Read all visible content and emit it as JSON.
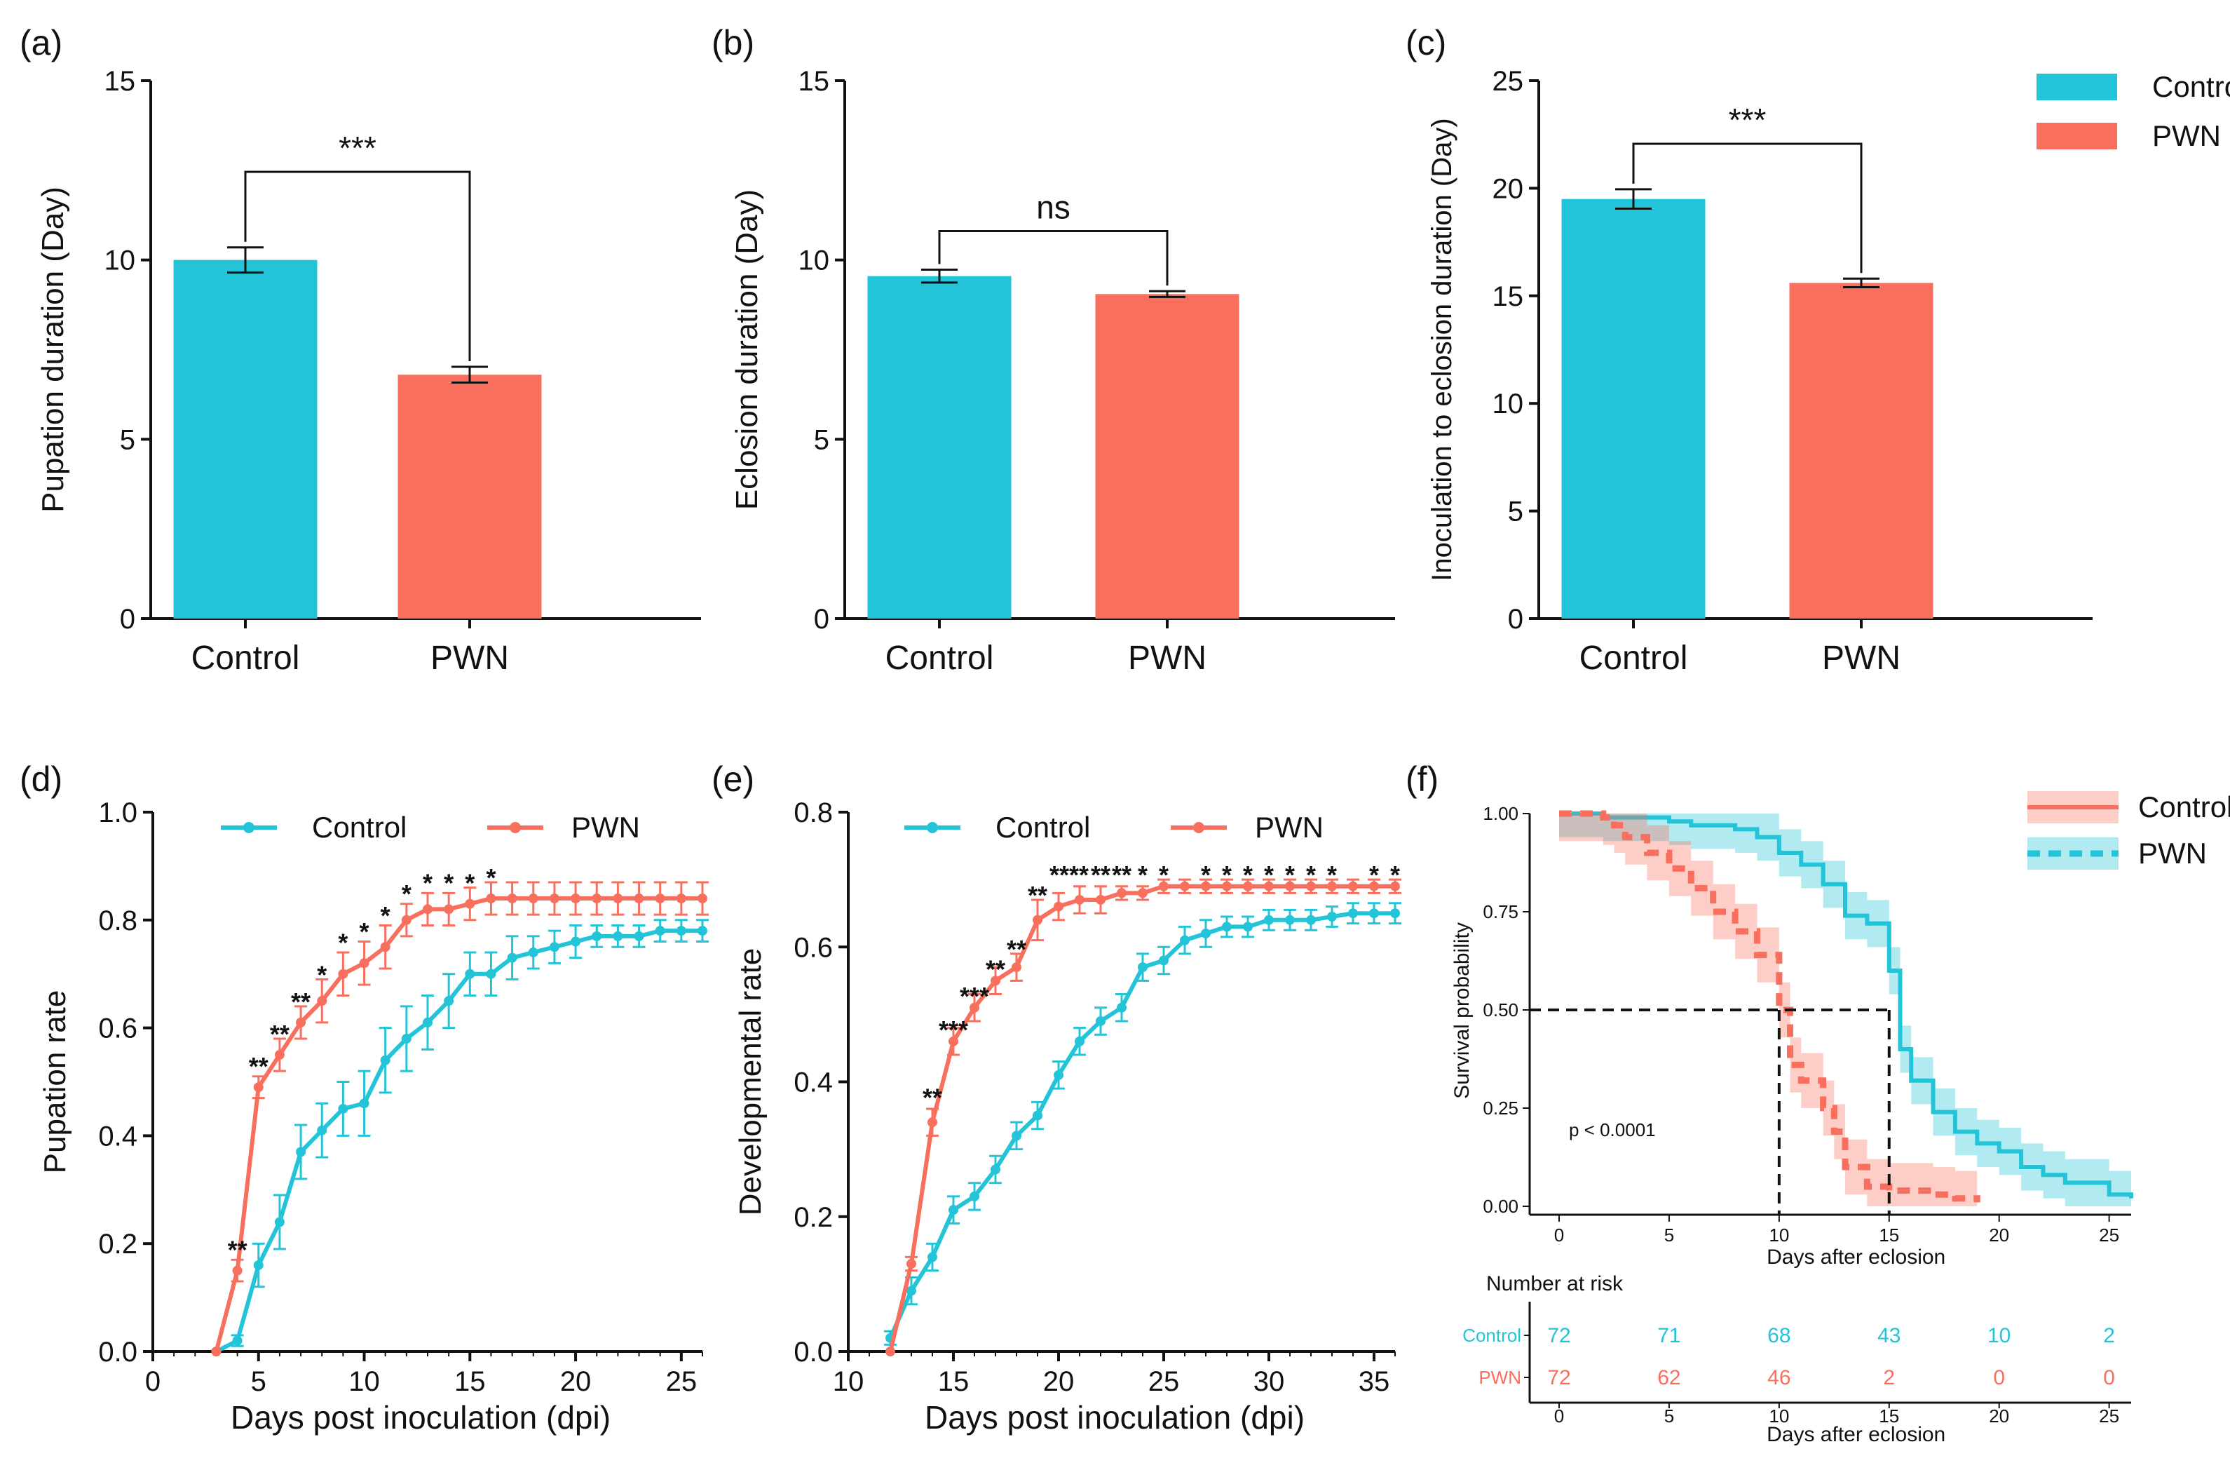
{
  "colors": {
    "control": "#23C4D8",
    "pwn": "#F96F5E",
    "axis": "#111111"
  },
  "legend": {
    "control": "Control",
    "pwn": "PWN"
  },
  "chart_data": [
    {
      "id": "a",
      "type": "bar",
      "panel_label": "(a)",
      "categories": [
        "Control",
        "PWN"
      ],
      "values": [
        10.0,
        6.8
      ],
      "errors": [
        0.35,
        0.22
      ],
      "ylabel": "Pupation duration  (Day)",
      "xlabel": "",
      "ylim": [
        0,
        15
      ],
      "yticks": [
        "0",
        "5",
        "10",
        "15"
      ],
      "significance": "***"
    },
    {
      "id": "b",
      "type": "bar",
      "panel_label": "(b)",
      "categories": [
        "Control",
        "PWN"
      ],
      "values": [
        9.55,
        9.05
      ],
      "errors": [
        0.18,
        0.08
      ],
      "ylabel": "Eclosion  duration  (Day)",
      "xlabel": "",
      "ylim": [
        0,
        15
      ],
      "yticks": [
        "0",
        "5",
        "10",
        "15"
      ],
      "significance": "ns"
    },
    {
      "id": "c",
      "type": "bar",
      "panel_label": "(c)",
      "categories": [
        "Control",
        "PWN"
      ],
      "values": [
        19.5,
        15.6
      ],
      "errors": [
        0.45,
        0.2
      ],
      "ylabel": "Inoculation to eclosion duration  (Day)",
      "xlabel": "",
      "ylim": [
        0,
        25
      ],
      "yticks": [
        "0",
        "5",
        "10",
        "15",
        "20",
        "25"
      ],
      "significance": "***"
    },
    {
      "id": "d",
      "type": "line",
      "panel_label": "(d)",
      "title": "",
      "xlabel": "Days post inoculation (dpi)",
      "ylabel": "Pupation rate",
      "xlim": [
        0,
        26
      ],
      "ylim": [
        0,
        1.0
      ],
      "xticks": [
        "0",
        "5",
        "10",
        "15",
        "20",
        "25"
      ],
      "yticks": [
        "0.0",
        "0.2",
        "0.4",
        "0.6",
        "0.8",
        "1.0"
      ],
      "series": [
        {
          "name": "Control",
          "x": [
            3,
            4,
            5,
            6,
            7,
            8,
            9,
            10,
            11,
            12,
            13,
            14,
            15,
            16,
            17,
            18,
            19,
            20,
            21,
            22,
            23,
            24,
            25,
            26
          ],
          "y": [
            0,
            0.02,
            0.16,
            0.24,
            0.37,
            0.41,
            0.45,
            0.46,
            0.54,
            0.58,
            0.61,
            0.65,
            0.7,
            0.7,
            0.73,
            0.74,
            0.75,
            0.76,
            0.77,
            0.77,
            0.77,
            0.78,
            0.78,
            0.78
          ],
          "err": [
            0,
            0.01,
            0.04,
            0.05,
            0.05,
            0.05,
            0.05,
            0.06,
            0.06,
            0.06,
            0.05,
            0.05,
            0.04,
            0.04,
            0.04,
            0.03,
            0.03,
            0.03,
            0.02,
            0.02,
            0.02,
            0.02,
            0.02,
            0.02
          ]
        },
        {
          "name": "PWN",
          "x": [
            3,
            4,
            5,
            6,
            7,
            8,
            9,
            10,
            11,
            12,
            13,
            14,
            15,
            16,
            17,
            18,
            19,
            20,
            21,
            22,
            23,
            24,
            25,
            26
          ],
          "y": [
            0,
            0.15,
            0.49,
            0.55,
            0.61,
            0.65,
            0.7,
            0.72,
            0.75,
            0.8,
            0.82,
            0.82,
            0.83,
            0.84,
            0.84,
            0.84,
            0.84,
            0.84,
            0.84,
            0.84,
            0.84,
            0.84,
            0.84,
            0.84
          ],
          "err": [
            0,
            0.02,
            0.02,
            0.03,
            0.03,
            0.04,
            0.04,
            0.04,
            0.04,
            0.03,
            0.03,
            0.03,
            0.03,
            0.03,
            0.03,
            0.03,
            0.03,
            0.03,
            0.03,
            0.03,
            0.03,
            0.03,
            0.03,
            0.03
          ]
        }
      ],
      "annotations": [
        {
          "x": 4,
          "y": 0.18,
          "text": "**"
        },
        {
          "x": 5,
          "y": 0.52,
          "text": "**"
        },
        {
          "x": 6,
          "y": 0.58,
          "text": "**"
        },
        {
          "x": 7,
          "y": 0.64,
          "text": "**"
        },
        {
          "x": 8,
          "y": 0.69,
          "text": "*"
        },
        {
          "x": 9,
          "y": 0.75,
          "text": "*"
        },
        {
          "x": 10,
          "y": 0.77,
          "text": "*"
        },
        {
          "x": 11,
          "y": 0.8,
          "text": "*"
        },
        {
          "x": 12,
          "y": 0.84,
          "text": "*"
        },
        {
          "x": 13,
          "y": 0.86,
          "text": "*"
        },
        {
          "x": 14,
          "y": 0.86,
          "text": "*"
        },
        {
          "x": 15,
          "y": 0.86,
          "text": "*"
        },
        {
          "x": 16,
          "y": 0.87,
          "text": "*"
        }
      ]
    },
    {
      "id": "e",
      "type": "line",
      "panel_label": "(e)",
      "title": "",
      "xlabel": "Days post inoculation (dpi)",
      "ylabel": "Developmental rate",
      "xlim": [
        10,
        36
      ],
      "ylim": [
        0,
        0.8
      ],
      "xticks": [
        "10",
        "15",
        "20",
        "25",
        "30",
        "35"
      ],
      "yticks": [
        "0.0",
        "0.2",
        "0.4",
        "0.6",
        "0.8"
      ],
      "series": [
        {
          "name": "Control",
          "x": [
            12,
            13,
            14,
            15,
            16,
            17,
            18,
            19,
            20,
            21,
            22,
            23,
            24,
            25,
            26,
            27,
            28,
            29,
            30,
            31,
            32,
            33,
            34,
            35,
            36
          ],
          "y": [
            0.02,
            0.09,
            0.14,
            0.21,
            0.23,
            0.27,
            0.32,
            0.35,
            0.41,
            0.46,
            0.49,
            0.51,
            0.57,
            0.58,
            0.61,
            0.62,
            0.63,
            0.63,
            0.64,
            0.64,
            0.64,
            0.645,
            0.65,
            0.65,
            0.65
          ],
          "err": [
            0.01,
            0.02,
            0.02,
            0.02,
            0.02,
            0.02,
            0.02,
            0.02,
            0.02,
            0.02,
            0.02,
            0.02,
            0.02,
            0.02,
            0.02,
            0.02,
            0.015,
            0.015,
            0.015,
            0.015,
            0.015,
            0.015,
            0.015,
            0.015,
            0.015
          ]
        },
        {
          "name": "PWN",
          "x": [
            12,
            13,
            14,
            15,
            16,
            17,
            18,
            19,
            20,
            21,
            22,
            23,
            24,
            25,
            26,
            27,
            28,
            29,
            30,
            31,
            32,
            33,
            34,
            35,
            36
          ],
          "y": [
            0,
            0.13,
            0.34,
            0.46,
            0.51,
            0.55,
            0.57,
            0.64,
            0.66,
            0.67,
            0.67,
            0.68,
            0.68,
            0.69,
            0.69,
            0.69,
            0.69,
            0.69,
            0.69,
            0.69,
            0.69,
            0.69,
            0.69,
            0.69,
            0.69
          ],
          "err": [
            0,
            0.01,
            0.02,
            0.02,
            0.02,
            0.02,
            0.02,
            0.03,
            0.02,
            0.02,
            0.02,
            0.01,
            0.01,
            0.01,
            0.01,
            0.01,
            0.01,
            0.01,
            0.01,
            0.01,
            0.01,
            0.01,
            0.01,
            0.01,
            0.01
          ]
        }
      ],
      "annotations": [
        {
          "x": 14,
          "y": 0.37,
          "text": "**"
        },
        {
          "x": 15,
          "y": 0.47,
          "text": "***"
        },
        {
          "x": 16,
          "y": 0.52,
          "text": "***"
        },
        {
          "x": 17,
          "y": 0.56,
          "text": "**"
        },
        {
          "x": 18,
          "y": 0.59,
          "text": "**"
        },
        {
          "x": 19,
          "y": 0.67,
          "text": "**"
        },
        {
          "x": 20.5,
          "y": 0.7,
          "text": "****"
        },
        {
          "x": 22,
          "y": 0.7,
          "text": "**"
        },
        {
          "x": 23,
          "y": 0.7,
          "text": "**"
        },
        {
          "x": 24,
          "y": 0.7,
          "text": "*"
        },
        {
          "x": 25,
          "y": 0.7,
          "text": "*"
        },
        {
          "x": 27,
          "y": 0.7,
          "text": "*"
        },
        {
          "x": 28,
          "y": 0.7,
          "text": "*"
        },
        {
          "x": 29,
          "y": 0.7,
          "text": "*"
        },
        {
          "x": 30,
          "y": 0.7,
          "text": "*"
        },
        {
          "x": 31,
          "y": 0.7,
          "text": "*"
        },
        {
          "x": 32,
          "y": 0.7,
          "text": "*"
        },
        {
          "x": 33,
          "y": 0.7,
          "text": "*"
        },
        {
          "x": 35,
          "y": 0.7,
          "text": "*"
        },
        {
          "x": 36,
          "y": 0.7,
          "text": "*"
        }
      ]
    },
    {
      "id": "f",
      "type": "line",
      "subtype": "survival",
      "panel_label": "(f)",
      "xlabel": "Days after eclosion",
      "ylabel": "Survival probability",
      "xlim": [
        0,
        26
      ],
      "ylim": [
        0,
        1.0
      ],
      "xticks": [
        "0",
        "5",
        "10",
        "15",
        "20",
        "25"
      ],
      "yticks": [
        "0.00",
        "0.25",
        "0.50",
        "0.75",
        "1.00"
      ],
      "pvalue": "p < 0.0001",
      "median": [
        {
          "name": "PWN",
          "x": 10,
          "y": 0.5
        },
        {
          "name": "Control",
          "x": 15,
          "y": 0.5
        }
      ],
      "series": [
        {
          "name": "Control",
          "style": "solid",
          "x": [
            0,
            2,
            5,
            6,
            8,
            9,
            10,
            11,
            12,
            13,
            14,
            15,
            15.5,
            16,
            17,
            18,
            19,
            20,
            21,
            22,
            23,
            25,
            26
          ],
          "y": [
            1.0,
            0.99,
            0.98,
            0.97,
            0.96,
            0.94,
            0.9,
            0.87,
            0.82,
            0.74,
            0.72,
            0.6,
            0.4,
            0.32,
            0.24,
            0.19,
            0.16,
            0.14,
            0.1,
            0.08,
            0.06,
            0.03,
            0.02
          ],
          "ci": 0.06
        },
        {
          "name": "PWN",
          "style": "dashed",
          "x": [
            0,
            2,
            2.5,
            3,
            4,
            5,
            6,
            7,
            8,
            9,
            10,
            10.5,
            11,
            12,
            12.5,
            13,
            14,
            15,
            16,
            17,
            18,
            19
          ],
          "y": [
            1.0,
            0.99,
            0.97,
            0.94,
            0.9,
            0.86,
            0.81,
            0.75,
            0.7,
            0.64,
            0.5,
            0.36,
            0.32,
            0.25,
            0.19,
            0.1,
            0.05,
            0.04,
            0.04,
            0.03,
            0.02,
            0.01
          ],
          "ci": 0.07
        }
      ],
      "risk_table": {
        "title": "Number at risk",
        "xlabel": "Days after eclosion",
        "times": [
          "0",
          "5",
          "10",
          "15",
          "20",
          "25"
        ],
        "rows": [
          {
            "name": "Control",
            "values": [
              "72",
              "71",
              "68",
              "43",
              "10",
              "2"
            ]
          },
          {
            "name": "PWN",
            "values": [
              "72",
              "62",
              "46",
              "2",
              "0",
              "0"
            ]
          }
        ]
      }
    }
  ]
}
